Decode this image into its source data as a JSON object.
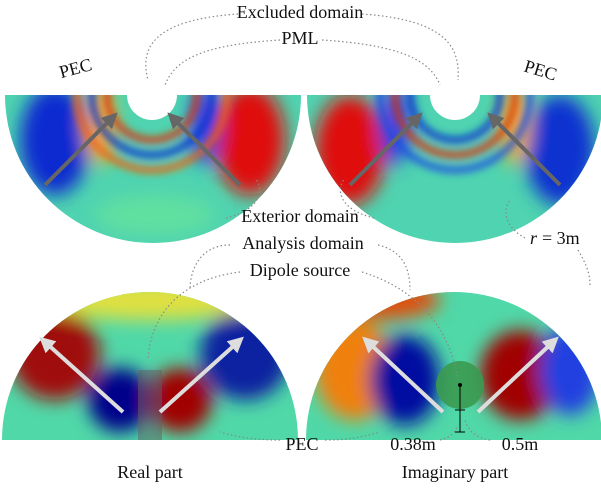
{
  "labels": {
    "excluded_domain": "Excluded domain",
    "pml": "PML",
    "pec_top_left": "PEC",
    "pec_top_right": "PEC",
    "exterior_domain": "Exterior domain",
    "analysis_domain": "Analysis domain",
    "dipole_source": "Dipole source",
    "radius": {
      "symbol": "r",
      "text": "= 3m"
    },
    "pec_bottom": "PEC",
    "dim_038": "0.38m",
    "dim_05": "0.5m"
  },
  "captions": [
    "Real part",
    "Imaginary part"
  ]
}
